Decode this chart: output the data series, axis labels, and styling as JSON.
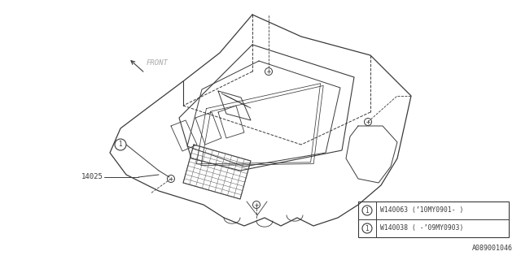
{
  "bg_color": "#ffffff",
  "line_color": "#3a3a3a",
  "fig_width": 6.4,
  "fig_height": 3.2,
  "dpi": 100,
  "part_number_label": "14025",
  "front_label": "FRONT",
  "diagram_id": "A089001046",
  "legend_rows": [
    {
      "num": "1",
      "part": "W140038",
      "note": "( -’09MY0903)"
    },
    {
      "num": "1",
      "part": "W140063",
      "note": "(’10MY0901- )"
    }
  ]
}
